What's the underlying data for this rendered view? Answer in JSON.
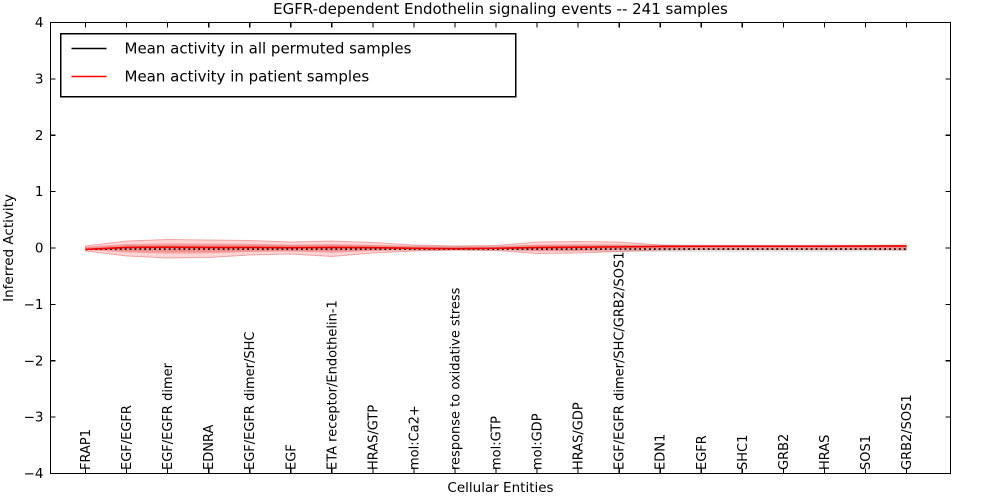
{
  "chart_data": {
    "type": "line",
    "title": "EGFR-dependent Endothelin signaling events -- 241 samples",
    "xlabel": "Cellular Entities",
    "ylabel": "Inferred Activity",
    "ylim": [
      -4,
      4
    ],
    "yticks": [
      {
        "v": 4,
        "label": "4"
      },
      {
        "v": 3,
        "label": "3"
      },
      {
        "v": 2,
        "label": "2"
      },
      {
        "v": 1,
        "label": "1"
      },
      {
        "v": 0,
        "label": "0"
      },
      {
        "v": -1,
        "label": "−1"
      },
      {
        "v": -2,
        "label": "−2"
      },
      {
        "v": -3,
        "label": "−3"
      },
      {
        "v": -4,
        "label": "−4"
      }
    ],
    "categories": [
      "FRAP1",
      "EGF/EGFR",
      "EGF/EGFR dimer",
      "EDNRA",
      "EGF/EGFR dimer/SHC",
      "EGF",
      "ETA receptor/Endothelin-1",
      "HRAS/GTP",
      "mol:Ca2+",
      "response to oxidative stress",
      "mol:GTP",
      "mol:GDP",
      "HRAS/GDP",
      "EGF/EGFR dimer/SHC/GRB2/SOS1",
      "EDN1",
      "EGFR",
      "SHC1",
      "GRB2",
      "HRAS",
      "SOS1",
      "GRB2/SOS1"
    ],
    "legend": {
      "position": "upper-left",
      "entries": [
        {
          "label": "Mean activity in all permuted samples",
          "color": "#000000"
        },
        {
          "label": "Mean activity in patient samples",
          "color": "#ff0000"
        }
      ]
    },
    "series": [
      {
        "name": "Mean activity in all permuted samples",
        "color": "#000000",
        "style": "dotted",
        "values": [
          -0.025,
          -0.018,
          -0.018,
          -0.018,
          -0.018,
          -0.018,
          -0.018,
          -0.018,
          -0.018,
          -0.018,
          -0.018,
          -0.018,
          -0.018,
          -0.018,
          -0.018,
          -0.018,
          -0.018,
          -0.018,
          -0.018,
          -0.018,
          -0.018
        ]
      },
      {
        "name": "Mean activity in patient samples",
        "color": "#ee0000",
        "style": "solid",
        "values": [
          -0.025,
          0.01,
          0.015,
          0.01,
          0.01,
          0.005,
          0.01,
          0.005,
          -0.005,
          -0.012,
          -0.005,
          0.008,
          0.015,
          0.02,
          0.028,
          0.032,
          0.032,
          0.032,
          0.032,
          0.034,
          0.036
        ]
      }
    ],
    "bands": [
      {
        "name": "permuted-envelope",
        "fill": "#c8c8c8",
        "opacity": 0.5,
        "stroke": "none",
        "upper": [
          0.01,
          0.05,
          0.06,
          0.06,
          0.06,
          0.055,
          0.055,
          0.05,
          0.045,
          0.04,
          0.045,
          0.055,
          0.06,
          0.065,
          0.065,
          0.065,
          0.065,
          0.065,
          0.065,
          0.06,
          0.05
        ],
        "lower": [
          -0.02,
          -0.06,
          -0.07,
          -0.07,
          -0.065,
          -0.06,
          -0.06,
          -0.055,
          -0.05,
          -0.045,
          -0.05,
          -0.06,
          -0.065,
          -0.07,
          -0.07,
          -0.07,
          -0.07,
          -0.07,
          -0.07,
          -0.065,
          -0.055
        ]
      },
      {
        "name": "patient-envelope-outer",
        "fill": "#ff0000",
        "opacity": 0.16,
        "stroke": "rgba(204,0,0,0.3)",
        "upper": [
          0.035,
          0.124,
          0.151,
          0.142,
          0.133,
          0.106,
          0.124,
          0.098,
          0.053,
          0.035,
          0.044,
          0.106,
          0.115,
          0.106,
          0.053,
          0.035,
          0.035,
          0.035,
          0.035,
          0.044,
          0.053
        ],
        "lower": [
          -0.053,
          -0.142,
          -0.177,
          -0.168,
          -0.124,
          -0.106,
          -0.151,
          -0.089,
          -0.053,
          -0.035,
          -0.044,
          -0.098,
          -0.089,
          -0.062,
          -0.035,
          -0.027,
          -0.027,
          -0.027,
          -0.027,
          -0.027,
          -0.035
        ]
      },
      {
        "name": "patient-envelope-inner",
        "fill": "#ff0000",
        "opacity": 0.24,
        "stroke": "none",
        "upper": [
          0.02,
          0.07,
          0.085,
          0.08,
          0.075,
          0.06,
          0.07,
          0.055,
          0.03,
          0.02,
          0.025,
          0.06,
          0.065,
          0.06,
          0.03,
          0.02,
          0.02,
          0.02,
          0.02,
          0.025,
          0.03
        ],
        "lower": [
          -0.03,
          -0.08,
          -0.1,
          -0.095,
          -0.07,
          -0.06,
          -0.085,
          -0.05,
          -0.03,
          -0.02,
          -0.025,
          -0.055,
          -0.05,
          -0.035,
          -0.02,
          -0.015,
          -0.015,
          -0.015,
          -0.015,
          -0.015,
          -0.02
        ]
      }
    ],
    "sample_count_note": "241 samples",
    "axis_color": "#000000",
    "background": "#ffffff"
  }
}
